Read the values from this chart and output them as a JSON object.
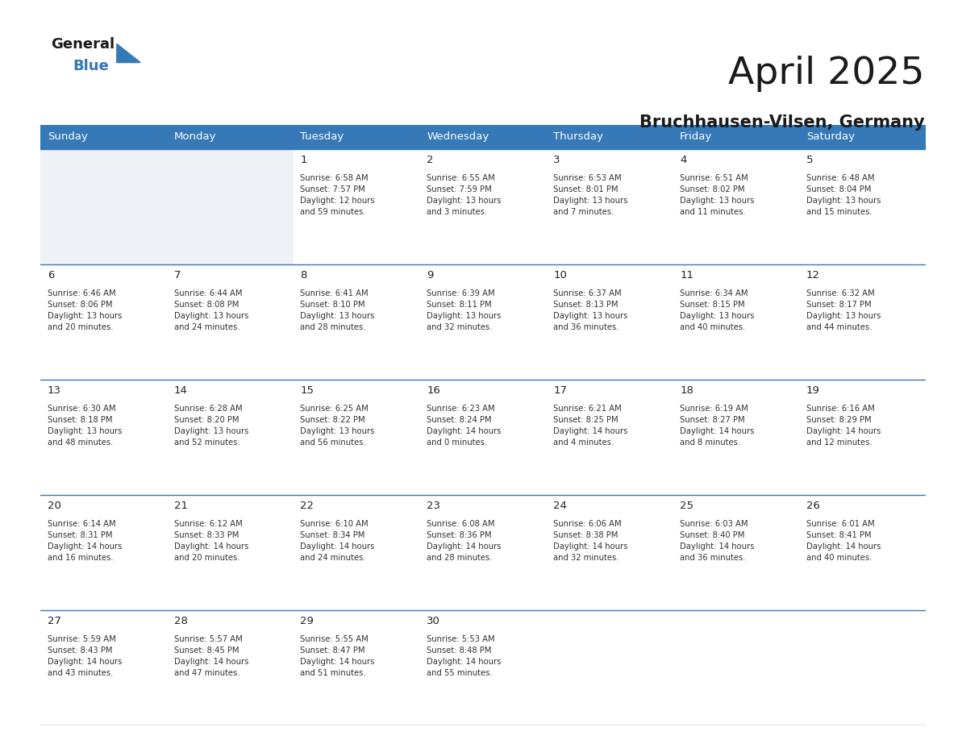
{
  "title": "April 2025",
  "subtitle": "Bruchhausen-Vilsen, Germany",
  "header_bg_color": "#3579b8",
  "header_text_color": "#ffffff",
  "cell_bg_empty": "#eef2f7",
  "cell_bg_white": "#ffffff",
  "grid_color": "#3579b8",
  "title_color": "#1a1a1a",
  "subtitle_color": "#1a1a1a",
  "info_color": "#333333",
  "day_num_color": "#222222",
  "days_of_week": [
    "Sunday",
    "Monday",
    "Tuesday",
    "Wednesday",
    "Thursday",
    "Friday",
    "Saturday"
  ],
  "weeks": [
    [
      {
        "day": "",
        "info": ""
      },
      {
        "day": "",
        "info": ""
      },
      {
        "day": "1",
        "info": "Sunrise: 6:58 AM\nSunset: 7:57 PM\nDaylight: 12 hours\nand 59 minutes."
      },
      {
        "day": "2",
        "info": "Sunrise: 6:55 AM\nSunset: 7:59 PM\nDaylight: 13 hours\nand 3 minutes."
      },
      {
        "day": "3",
        "info": "Sunrise: 6:53 AM\nSunset: 8:01 PM\nDaylight: 13 hours\nand 7 minutes."
      },
      {
        "day": "4",
        "info": "Sunrise: 6:51 AM\nSunset: 8:02 PM\nDaylight: 13 hours\nand 11 minutes."
      },
      {
        "day": "5",
        "info": "Sunrise: 6:48 AM\nSunset: 8:04 PM\nDaylight: 13 hours\nand 15 minutes."
      }
    ],
    [
      {
        "day": "6",
        "info": "Sunrise: 6:46 AM\nSunset: 8:06 PM\nDaylight: 13 hours\nand 20 minutes."
      },
      {
        "day": "7",
        "info": "Sunrise: 6:44 AM\nSunset: 8:08 PM\nDaylight: 13 hours\nand 24 minutes."
      },
      {
        "day": "8",
        "info": "Sunrise: 6:41 AM\nSunset: 8:10 PM\nDaylight: 13 hours\nand 28 minutes."
      },
      {
        "day": "9",
        "info": "Sunrise: 6:39 AM\nSunset: 8:11 PM\nDaylight: 13 hours\nand 32 minutes."
      },
      {
        "day": "10",
        "info": "Sunrise: 6:37 AM\nSunset: 8:13 PM\nDaylight: 13 hours\nand 36 minutes."
      },
      {
        "day": "11",
        "info": "Sunrise: 6:34 AM\nSunset: 8:15 PM\nDaylight: 13 hours\nand 40 minutes."
      },
      {
        "day": "12",
        "info": "Sunrise: 6:32 AM\nSunset: 8:17 PM\nDaylight: 13 hours\nand 44 minutes."
      }
    ],
    [
      {
        "day": "13",
        "info": "Sunrise: 6:30 AM\nSunset: 8:18 PM\nDaylight: 13 hours\nand 48 minutes."
      },
      {
        "day": "14",
        "info": "Sunrise: 6:28 AM\nSunset: 8:20 PM\nDaylight: 13 hours\nand 52 minutes."
      },
      {
        "day": "15",
        "info": "Sunrise: 6:25 AM\nSunset: 8:22 PM\nDaylight: 13 hours\nand 56 minutes."
      },
      {
        "day": "16",
        "info": "Sunrise: 6:23 AM\nSunset: 8:24 PM\nDaylight: 14 hours\nand 0 minutes."
      },
      {
        "day": "17",
        "info": "Sunrise: 6:21 AM\nSunset: 8:25 PM\nDaylight: 14 hours\nand 4 minutes."
      },
      {
        "day": "18",
        "info": "Sunrise: 6:19 AM\nSunset: 8:27 PM\nDaylight: 14 hours\nand 8 minutes."
      },
      {
        "day": "19",
        "info": "Sunrise: 6:16 AM\nSunset: 8:29 PM\nDaylight: 14 hours\nand 12 minutes."
      }
    ],
    [
      {
        "day": "20",
        "info": "Sunrise: 6:14 AM\nSunset: 8:31 PM\nDaylight: 14 hours\nand 16 minutes."
      },
      {
        "day": "21",
        "info": "Sunrise: 6:12 AM\nSunset: 8:33 PM\nDaylight: 14 hours\nand 20 minutes."
      },
      {
        "day": "22",
        "info": "Sunrise: 6:10 AM\nSunset: 8:34 PM\nDaylight: 14 hours\nand 24 minutes."
      },
      {
        "day": "23",
        "info": "Sunrise: 6:08 AM\nSunset: 8:36 PM\nDaylight: 14 hours\nand 28 minutes."
      },
      {
        "day": "24",
        "info": "Sunrise: 6:06 AM\nSunset: 8:38 PM\nDaylight: 14 hours\nand 32 minutes."
      },
      {
        "day": "25",
        "info": "Sunrise: 6:03 AM\nSunset: 8:40 PM\nDaylight: 14 hours\nand 36 minutes."
      },
      {
        "day": "26",
        "info": "Sunrise: 6:01 AM\nSunset: 8:41 PM\nDaylight: 14 hours\nand 40 minutes."
      }
    ],
    [
      {
        "day": "27",
        "info": "Sunrise: 5:59 AM\nSunset: 8:43 PM\nDaylight: 14 hours\nand 43 minutes."
      },
      {
        "day": "28",
        "info": "Sunrise: 5:57 AM\nSunset: 8:45 PM\nDaylight: 14 hours\nand 47 minutes."
      },
      {
        "day": "29",
        "info": "Sunrise: 5:55 AM\nSunset: 8:47 PM\nDaylight: 14 hours\nand 51 minutes."
      },
      {
        "day": "30",
        "info": "Sunrise: 5:53 AM\nSunset: 8:48 PM\nDaylight: 14 hours\nand 55 minutes."
      },
      {
        "day": "",
        "info": ""
      },
      {
        "day": "",
        "info": ""
      },
      {
        "day": "",
        "info": ""
      }
    ]
  ],
  "logo_general_color": "#1a1a1a",
  "logo_blue_color": "#3579b8",
  "logo_triangle_color": "#3579b8"
}
